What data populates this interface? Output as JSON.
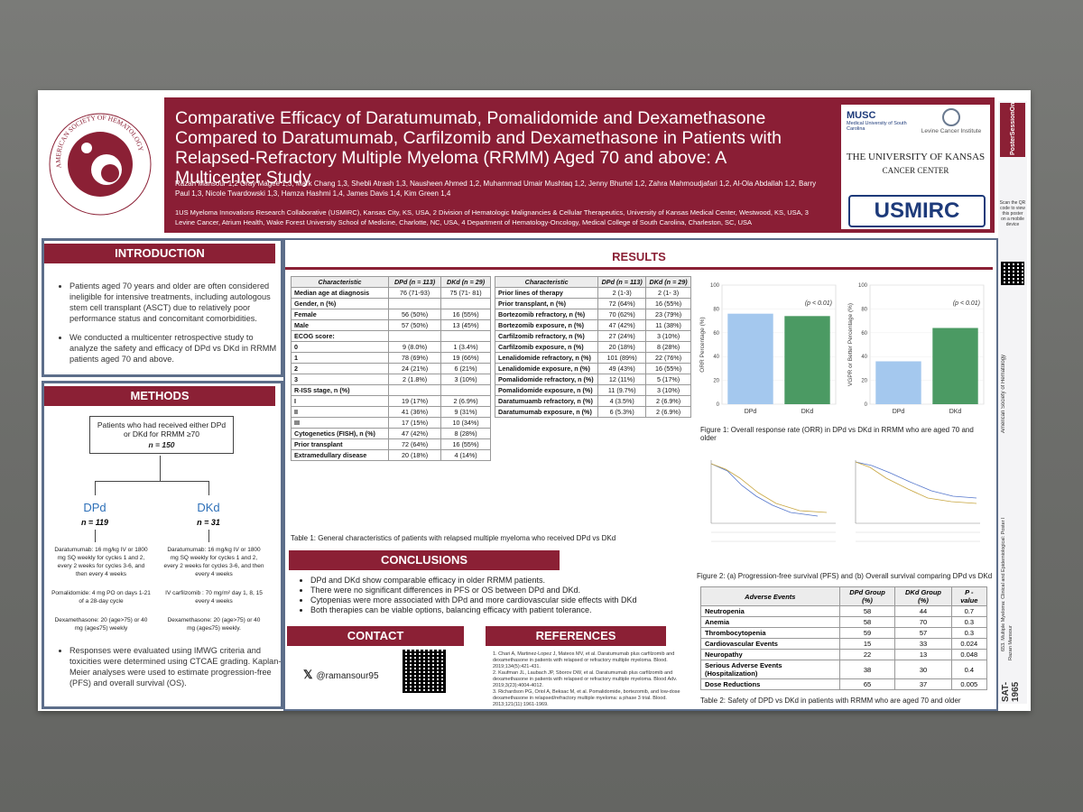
{
  "header": {
    "title": "Comparative Efficacy of Daratumumab, Pomalidomide and Dexamethasone Compared to Daratumumab, Carfilzomib and Dexamethasone in Patients with Relapsed-Refractory Multiple Myeloma (RRMM) Aged 70 and above: A Multicenter Study",
    "authors": "Razan Mansour 1,2 Gray Magee 1,3, Mark Chang 1,3, Shebli Atrash 1,3, Nausheen Ahmed 1,2, Muhammad Umair Mushtaq 1,2, Jenny Bhurtel 1,2, Zahra Mahmoudjafari 1,2, Al-Ola Abdallah 1,2, Barry Paul 1,3, Nicole Twardowski 1,3, Hamza Hashmi 1,4, James Davis 1,4, Kim Green 1,4",
    "affiliations": "1US Myeloma Innovations Research Collaborative (USMIRC), Kansas City, KS, USA, 2 Division of Hematologic Malignancies & Cellular Therapeutics, University of Kansas Medical Center, Westwood, KS, USA, 3 Levine Cancer, Atrium Health, Wake Forest University School of Medicine, Charlotte, NC, USA, 4 Department of Hematology-Oncology, Medical College of South Carolina, Charleston, SC, USA",
    "ash_logo_text": "AMERICAN SOCIETY OF HEMATOLOGY",
    "inst1": "MUSC",
    "inst1_sub": "Medical University of South Carolina",
    "inst2": "Levine Cancer Institute",
    "inst3": "THE UNIVERSITY OF KANSAS",
    "inst3_sub": "CANCER CENTER",
    "inst4": "USMIRC"
  },
  "sidebar": {
    "brand": "PosterSessionOnline",
    "qr_text": "Scan the QR code to view this poster on a mobile device",
    "vertical1": "American Society of Hematology",
    "vertical2": "653. Multiple Myeloma: Clinical and Epidemiological: Poster I",
    "vertical3": "Razan Mansour",
    "code": "SAT-1965"
  },
  "intro": {
    "heading": "INTRODUCTION",
    "bullets": [
      "Patients aged 70 years and older are often considered ineligible for intensive treatments, including autologous stem cell transplant (ASCT) due to relatively poor performance status and concomitant comorbidities.",
      "We conducted a multicenter retrospective study to analyze the safety and efficacy of DPd vs DKd in RRMM patients aged 70 and above."
    ]
  },
  "methods": {
    "heading": "METHODS",
    "box": "Patients who had received either DPd or DKd for RRMM ≥70",
    "box_n": "n = 150",
    "arm1": "DPd",
    "arm1_n": "n = 119",
    "arm2": "DKd",
    "arm2_n": "n = 31",
    "arm1_t1": "Daratumumab: 16 mg/kg IV or 1800 mg SQ weekly for cycles 1 and 2, every 2 weeks for cycles 3-6, and then every 4 weeks",
    "arm1_t2": "Pomalidomide: 4 mg PO on days 1-21 of a 28-day cycle",
    "arm1_t3": "Dexamethasone: 20 (age>75) or 40 mg (age≤75) weekly",
    "arm2_t1": "Daratumumab: 16 mg/kg IV or 1800 mg SQ weekly for cycles 1 and 2, every 2 weeks for cycles 3-6, and then every 4 weeks",
    "arm2_t2": "IV carfilzomib : 70 mg/m² day 1, 8, 15 every 4 weeks",
    "arm2_t3": "Dexamethasone: 20 (age>75) or 40 mg (age≤75) weekly.",
    "bullets": [
      "Responses were evaluated using IMWG criteria and toxicities were determined using CTCAE grading. Kaplan-Meier analyses were used to estimate progression-free (PFS) and overall survival (OS)."
    ]
  },
  "results": {
    "heading": "RESULTS",
    "t1_head": [
      "Characteristic",
      "DPd (n = 113)",
      "DKd (n = 29)"
    ],
    "t1_rows": [
      [
        "Median age at diagnosis",
        "76 (71-93)",
        "75 (71- 81)"
      ],
      [
        "Gender, n (%)",
        "",
        ""
      ],
      [
        "Female",
        "56 (50%)",
        "16 (55%)"
      ],
      [
        "Male",
        "57 (50%)",
        "13 (45%)"
      ],
      [
        "ECOG score:",
        "",
        ""
      ],
      [
        "0",
        "9 (8.0%)",
        "1 (3.4%)"
      ],
      [
        "1",
        "78 (69%)",
        "19 (66%)"
      ],
      [
        "2",
        "24 (21%)",
        "6 (21%)"
      ],
      [
        "3",
        "2 (1.8%)",
        "3 (10%)"
      ],
      [
        "R-ISS stage, n (%)",
        "",
        ""
      ],
      [
        "I",
        "19 (17%)",
        "2 (6.9%)"
      ],
      [
        "II",
        "41 (36%)",
        "9 (31%)"
      ],
      [
        "III",
        "17 (15%)",
        "10 (34%)"
      ],
      [
        "Cytogenetics (FISH), n (%)",
        "47 (42%)",
        "8 (28%)"
      ],
      [
        "Prior transplant",
        "72 (64%)",
        "16 (55%)"
      ],
      [
        "Extramedullary disease",
        "20 (18%)",
        "4 (14%)"
      ]
    ],
    "t2_head": [
      "Characteristic",
      "DPd (n = 113)",
      "DKd (n = 29)"
    ],
    "t2_rows": [
      [
        "Prior lines of therapy",
        "2 (1-3)",
        "2 (1- 3)"
      ],
      [
        "Prior transplant, n (%)",
        "72 (64%)",
        "16 (55%)"
      ],
      [
        "Bortezomib refractory, n (%)",
        "70 (62%)",
        "23 (79%)"
      ],
      [
        "Bortezomib exposure, n (%)",
        "47 (42%)",
        "11 (38%)"
      ],
      [
        "Carfilzomib refractory, n (%)",
        "27 (24%)",
        "3 (10%)"
      ],
      [
        "Carfilzomib exposure, n (%)",
        "20 (18%)",
        "8 (28%)"
      ],
      [
        "Lenalidomide refractory, n (%)",
        "101 (89%)",
        "22 (76%)"
      ],
      [
        "Lenalidomide exposure, n (%)",
        "49 (43%)",
        "16 (55%)"
      ],
      [
        "Pomalidomide refractory, n (%)",
        "12 (11%)",
        "5 (17%)"
      ],
      [
        "Pomalidomide exposure, n (%)",
        "11 (9.7%)",
        "3 (10%)"
      ],
      [
        "Daratumuamb refractory, n (%)",
        "4 (3.5%)",
        "2 (6.9%)"
      ],
      [
        "Daratumumab exposure, n (%)",
        "6 (5.3%)",
        "2 (6.9%)"
      ]
    ],
    "table1_caption": "Table 1: General characteristics of patients with relapsed multiple myeloma who received DPd vs DKd",
    "fig1_caption": "Figure 1: Overall response rate (ORR) in DPd vs DKd in RRMM who are aged 70 and older",
    "fig2_caption": "Figure 2: (a) Progression-free survival (PFS) and (b) Overall survival comparing DPd vs DKd",
    "ae_head": [
      "Adverse Events",
      "DPd Group (%)",
      "DKd Group (%)",
      "P - value"
    ],
    "ae_rows": [
      [
        "Neutropenia",
        "58",
        "44",
        "0.7"
      ],
      [
        "Anemia",
        "58",
        "70",
        "0.3"
      ],
      [
        "Thrombocytopenia",
        "59",
        "57",
        "0.3"
      ],
      [
        "Cardiovascular Events",
        "15",
        "33",
        "0.024"
      ],
      [
        "Neuropathy",
        "22",
        "13",
        "0.048"
      ],
      [
        "Serious Adverse Events (Hospitalization)",
        "38",
        "30",
        "0.4"
      ],
      [
        "Dose Reductions",
        "65",
        "37",
        "0.005"
      ]
    ],
    "table2_caption": "Table 2: Safety of DPD vs DKd in patients with RRMM who are aged 70 and older"
  },
  "chart_data": [
    {
      "type": "bar",
      "categories": [
        "DPd",
        "DKd"
      ],
      "values": [
        76,
        74
      ],
      "ylabel": "ORR Percentage (%)",
      "ylim": [
        0,
        100
      ],
      "annotation": "(p < 0.01)",
      "colors": [
        "#a4c8ee",
        "#4b9a63"
      ]
    },
    {
      "type": "bar",
      "categories": [
        "DPd",
        "DKd"
      ],
      "values": [
        36,
        64
      ],
      "ylabel": "VGPR or Better Percentage (%)",
      "ylim": [
        0,
        100
      ],
      "annotation": "(p < 0.01)",
      "colors": [
        "#a4c8ee",
        "#4b9a63"
      ]
    }
  ],
  "conclusions": {
    "heading": "CONCLUSIONS",
    "bullets": [
      "DPd and DKd show comparable efficacy in older RRMM patients.",
      "There were no significant differences in PFS or OS between DPd and DKd.",
      "Cytopenias were more associated with DPd and more cardiovascular side effects with DKd",
      "Both therapies can be viable options, balancing efficacy with patient tolerance."
    ]
  },
  "contact": {
    "heading": "CONTACT",
    "handle": "@ramansour95"
  },
  "references": {
    "heading": "REFERENCES",
    "items": [
      "1. Chari A, Martinez-Lopez J, Mateos MV, et al. Daratumumab plus carfilzomib and dexamethasone in patients with relapsed or refractory multiple myeloma. Blood. 2019;134(5):421-431.",
      "2. Kaufman JL, Laubach JP, Sborov DW, et al. Daratumumab plus carfilzomib and dexamethasone in patients with relapsed or refractory multiple myeloma. Blood Adv. 2019;3(23):4004-4012.",
      "3. Richardson PG, Oriol A, Beksac M, et al. Pomalidomide, bortezomib, and low-dose dexamethasone in relapsed/refractory multiple myeloma: a phase 3 trial. Blood. 2013;121(11):1961-1969."
    ]
  }
}
